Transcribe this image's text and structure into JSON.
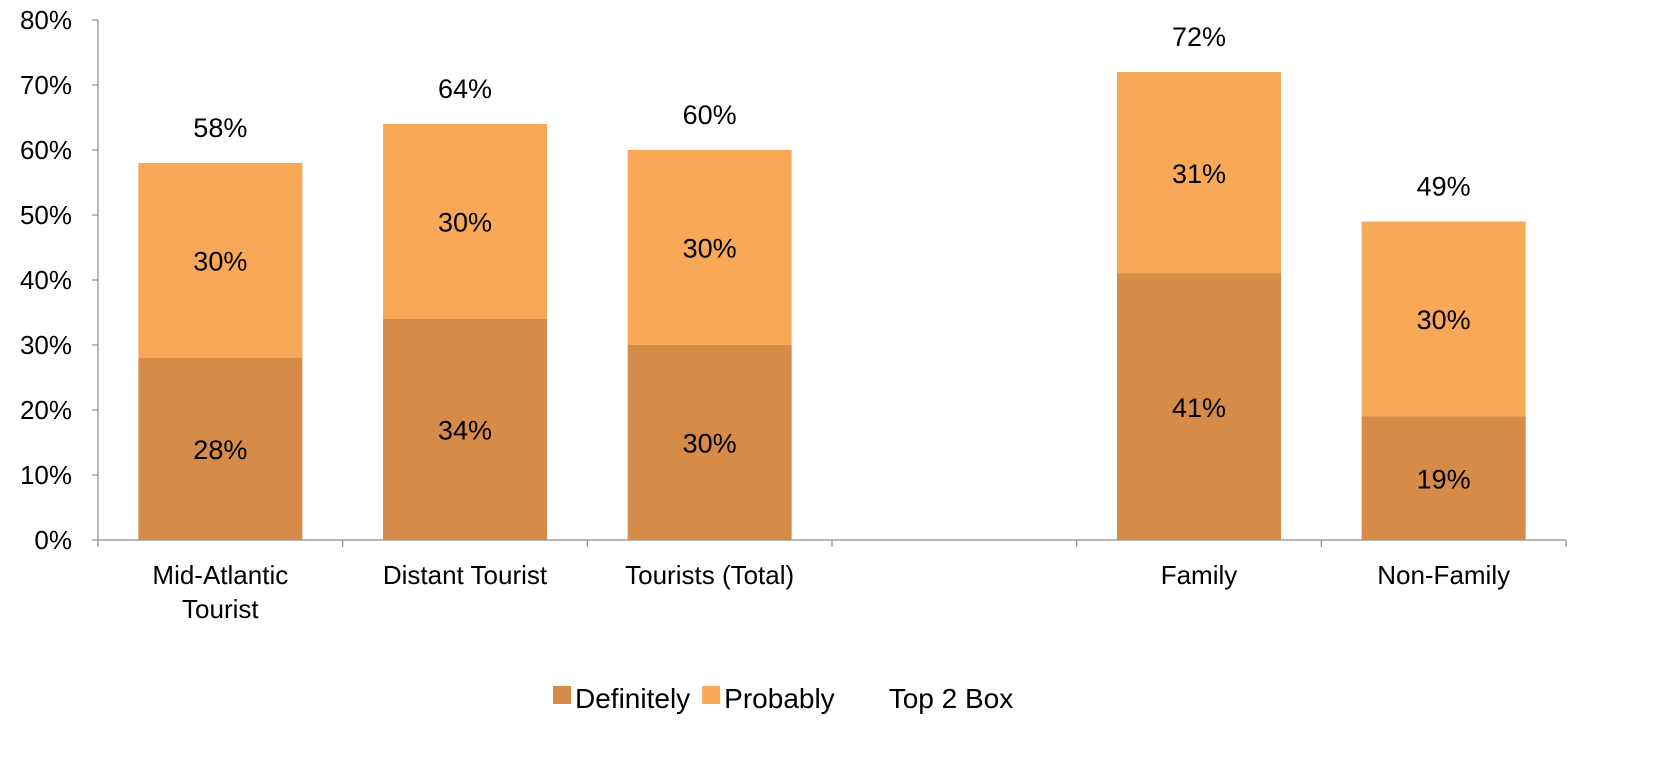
{
  "chart_data": {
    "type": "bar",
    "stacked": true,
    "categories": [
      [
        "Mid-Atlantic",
        "Tourist"
      ],
      [
        "Distant Tourist"
      ],
      [
        "Tourists (Total)"
      ],
      [
        ""
      ],
      [
        "Family"
      ],
      [
        "Non-Family"
      ]
    ],
    "series": [
      {
        "name": "Definitely",
        "color": "#D68C48",
        "values": [
          28,
          34,
          30,
          null,
          41,
          19
        ]
      },
      {
        "name": "Probably",
        "color": "#F9A858",
        "values": [
          30,
          30,
          30,
          null,
          31,
          30
        ]
      }
    ],
    "totals": {
      "name": "Top 2 Box",
      "values": [
        58,
        64,
        60,
        null,
        72,
        49
      ]
    },
    "value_format": "{v}%",
    "ylim": [
      0,
      80
    ],
    "ytick_step": 10,
    "ytick_labels": [
      "0%",
      "10%",
      "20%",
      "30%",
      "40%",
      "50%",
      "60%",
      "70%",
      "80%"
    ],
    "grid": false,
    "legend_position": "bottom-center",
    "title": "",
    "xlabel": "",
    "ylabel": ""
  }
}
